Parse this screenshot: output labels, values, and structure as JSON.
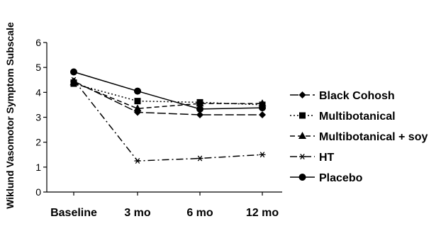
{
  "chart_data": {
    "type": "line",
    "title": "",
    "xlabel": "",
    "ylabel": "Wiklund Vasomotor Symptom Subscale",
    "ylim": [
      0,
      6
    ],
    "yticks": [
      0,
      1,
      2,
      3,
      4,
      5,
      6
    ],
    "categories": [
      "Baseline",
      "3 mo",
      "6 mo",
      "12 mo"
    ],
    "grid": false,
    "legend_position": "right",
    "series": [
      {
        "name": "Black Cohosh",
        "values": [
          4.45,
          3.2,
          3.1,
          3.1
        ],
        "marker": "diamond",
        "dash": "long-dash"
      },
      {
        "name": "Multibotanical",
        "values": [
          4.35,
          3.65,
          3.6,
          3.5
        ],
        "marker": "square",
        "dash": "dotted"
      },
      {
        "name": "Multibotanical + soy",
        "values": [
          4.4,
          3.35,
          3.55,
          3.55
        ],
        "marker": "triangle",
        "dash": "dashed"
      },
      {
        "name": "HT",
        "values": [
          4.5,
          1.25,
          1.35,
          1.5
        ],
        "marker": "asterisk",
        "dash": "dash-dot"
      },
      {
        "name": "Placebo",
        "values": [
          4.82,
          4.05,
          3.33,
          3.38
        ],
        "marker": "circle",
        "dash": "solid"
      }
    ]
  }
}
